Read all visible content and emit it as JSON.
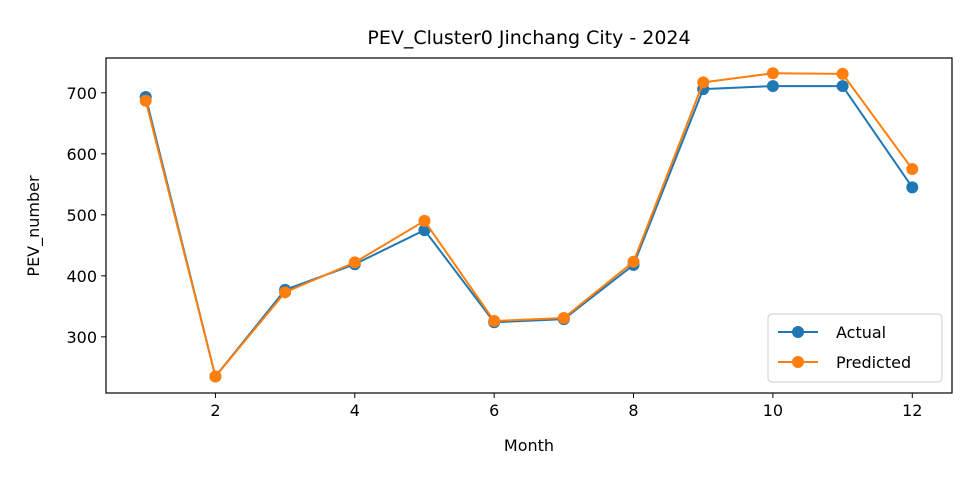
{
  "chart_data": {
    "type": "line",
    "title": "PEV_Cluster0 Jinchang City - 2024",
    "xlabel": "Month",
    "ylabel": "PEV_number",
    "x": [
      1,
      2,
      3,
      4,
      5,
      6,
      7,
      8,
      9,
      10,
      11,
      12
    ],
    "xticks": [
      2,
      4,
      6,
      8,
      10,
      12
    ],
    "yticks": [
      300,
      400,
      500,
      600,
      700
    ],
    "xlim": [
      0.43,
      12.57
    ],
    "ylim": [
      208,
      757
    ],
    "grid": false,
    "legend_position": "lower right",
    "series": [
      {
        "name": "Actual",
        "color": "#1f77b4",
        "marker": "circle",
        "values": [
          693,
          235,
          377,
          419,
          475,
          324,
          329,
          418,
          706,
          711,
          711,
          545
        ]
      },
      {
        "name": "Predicted",
        "color": "#ff7f0e",
        "marker": "circle",
        "values": [
          687,
          235,
          373,
          422,
          490,
          326,
          331,
          423,
          717,
          732,
          731,
          575
        ]
      }
    ]
  }
}
